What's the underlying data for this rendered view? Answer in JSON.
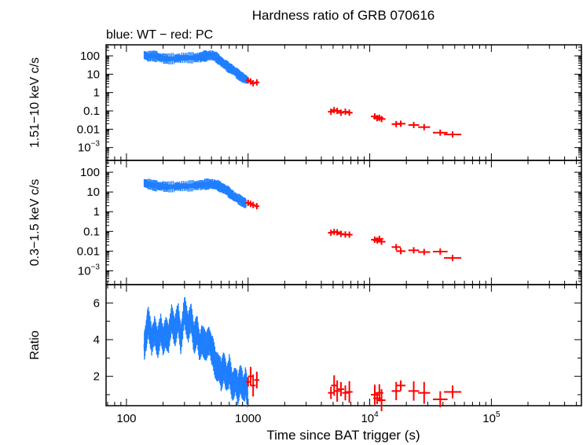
{
  "chart_data": {
    "type": "scatter",
    "title": "Hardness ratio of GRB 070616",
    "subtitle": "blue: WT − red: PC",
    "xlabel": "Time since BAT trigger (s)",
    "x_scale": "log",
    "xlim": [
      68,
      550000
    ],
    "x_ticks": [
      {
        "value": 100,
        "label": "100"
      },
      {
        "value": 1000,
        "label": "1000"
      },
      {
        "value": 10000,
        "base": "10",
        "exp": "4"
      },
      {
        "value": 100000,
        "base": "10",
        "exp": "5"
      }
    ],
    "colors": {
      "WT": "#1f7fff",
      "PC": "#ff0000"
    },
    "panels": [
      {
        "ylabel": "1.51−10 keV c/s",
        "y_scale": "log",
        "ylim": [
          0.0002,
          400
        ],
        "y_ticks": [
          {
            "value": 100,
            "label": "100"
          },
          {
            "value": 10,
            "label": "10"
          },
          {
            "value": 1,
            "label": "1"
          },
          {
            "value": 0.1,
            "label": "0.1"
          },
          {
            "value": 0.01,
            "label": "0.01"
          },
          {
            "value": 0.001,
            "base": "10",
            "exp": "−3"
          }
        ],
        "wt_series": [
          [
            140,
            110
          ],
          [
            150,
            95
          ],
          [
            165,
            100
          ],
          [
            180,
            88
          ],
          [
            200,
            72
          ],
          [
            220,
            68
          ],
          [
            250,
            72
          ],
          [
            280,
            78
          ],
          [
            320,
            80
          ],
          [
            360,
            78
          ],
          [
            400,
            82
          ],
          [
            430,
            95
          ],
          [
            460,
            100
          ],
          [
            500,
            110
          ],
          [
            540,
            90
          ],
          [
            580,
            60
          ],
          [
            620,
            40
          ],
          [
            660,
            30
          ],
          [
            700,
            22
          ],
          [
            750,
            18
          ],
          [
            800,
            12
          ],
          [
            860,
            8
          ],
          [
            920,
            6
          ],
          [
            980,
            5
          ]
        ],
        "pc_points": [
          [
            1000,
            4.6
          ],
          [
            1050,
            4.0
          ],
          [
            1100,
            3.2
          ],
          [
            1180,
            3.6
          ],
          [
            4800,
            0.09
          ],
          [
            5100,
            0.11
          ],
          [
            5400,
            0.1
          ],
          [
            5800,
            0.08
          ],
          [
            6300,
            0.09
          ],
          [
            6800,
            0.08
          ],
          [
            11000,
            0.05
          ],
          [
            11500,
            0.04
          ],
          [
            12000,
            0.042
          ],
          [
            12500,
            0.036
          ],
          [
            16500,
            0.019
          ],
          [
            18000,
            0.02
          ],
          [
            23000,
            0.017
          ],
          [
            28000,
            0.013
          ],
          [
            38000,
            0.0065
          ],
          [
            48000,
            0.0052
          ]
        ]
      },
      {
        "ylabel": "0.3−1.5 keV c/s",
        "y_scale": "log",
        "ylim": [
          0.0002,
          400
        ],
        "y_ticks": [
          {
            "value": 100,
            "label": "100"
          },
          {
            "value": 10,
            "label": "10"
          },
          {
            "value": 1,
            "label": "1"
          },
          {
            "value": 0.1,
            "label": "0.1"
          },
          {
            "value": 0.01,
            "label": "0.01"
          },
          {
            "value": 0.001,
            "base": "10",
            "exp": "−3"
          }
        ],
        "wt_series": [
          [
            140,
            28
          ],
          [
            150,
            26
          ],
          [
            165,
            22
          ],
          [
            180,
            20
          ],
          [
            200,
            19
          ],
          [
            220,
            18
          ],
          [
            250,
            19
          ],
          [
            280,
            20
          ],
          [
            320,
            20
          ],
          [
            360,
            21
          ],
          [
            400,
            22
          ],
          [
            440,
            24
          ],
          [
            480,
            26
          ],
          [
            520,
            25
          ],
          [
            560,
            22
          ],
          [
            600,
            17
          ],
          [
            640,
            14
          ],
          [
            680,
            11
          ],
          [
            720,
            8
          ],
          [
            770,
            6
          ],
          [
            830,
            4.5
          ],
          [
            900,
            3.2
          ],
          [
            960,
            2.6
          ]
        ],
        "pc_points": [
          [
            1000,
            2.8
          ],
          [
            1050,
            2.5
          ],
          [
            1100,
            2.2
          ],
          [
            1180,
            1.9
          ],
          [
            4800,
            0.085
          ],
          [
            5100,
            0.095
          ],
          [
            5400,
            0.09
          ],
          [
            5800,
            0.075
          ],
          [
            6300,
            0.07
          ],
          [
            6800,
            0.068
          ],
          [
            11000,
            0.038
          ],
          [
            11500,
            0.035
          ],
          [
            12000,
            0.042
          ],
          [
            12500,
            0.03
          ],
          [
            16500,
            0.016
          ],
          [
            18000,
            0.01
          ],
          [
            23000,
            0.011
          ],
          [
            28000,
            0.009
          ],
          [
            38000,
            0.0095
          ],
          [
            48000,
            0.0045
          ]
        ]
      },
      {
        "ylabel": "Ratio",
        "y_scale": "linear",
        "ylim": [
          0.4,
          7
        ],
        "y_ticks": [
          {
            "value": 2,
            "label": "2"
          },
          {
            "value": 4,
            "label": "4"
          },
          {
            "value": 6,
            "label": "6"
          }
        ],
        "wt_series": [
          [
            140,
            3.6
          ],
          [
            145,
            4.3
          ],
          [
            150,
            5.2
          ],
          [
            160,
            3.8
          ],
          [
            170,
            4.4
          ],
          [
            180,
            3.6
          ],
          [
            190,
            4.8
          ],
          [
            200,
            4.0
          ],
          [
            210,
            4.6
          ],
          [
            220,
            3.8
          ],
          [
            235,
            5.1
          ],
          [
            250,
            4.2
          ],
          [
            265,
            5.5
          ],
          [
            280,
            4.0
          ],
          [
            300,
            5.8
          ],
          [
            320,
            4.4
          ],
          [
            340,
            5.2
          ],
          [
            360,
            3.8
          ],
          [
            380,
            4.8
          ],
          [
            400,
            3.6
          ],
          [
            420,
            4.2
          ],
          [
            450,
            3.4
          ],
          [
            480,
            3.9
          ],
          [
            510,
            3.2
          ],
          [
            540,
            2.8
          ],
          [
            570,
            2.6
          ],
          [
            600,
            2.2
          ],
          [
            630,
            2.4
          ],
          [
            660,
            1.8
          ],
          [
            700,
            2.2
          ],
          [
            740,
            1.6
          ],
          [
            780,
            1.9
          ],
          [
            820,
            1.4
          ],
          [
            860,
            1.7
          ],
          [
            900,
            1.3
          ],
          [
            950,
            1.5
          ],
          [
            990,
            1.1
          ]
        ],
        "pc_points": [
          [
            1000,
            1.7
          ],
          [
            1050,
            2.0
          ],
          [
            1100,
            1.5
          ],
          [
            1180,
            1.8
          ],
          [
            4800,
            1.1
          ],
          [
            5100,
            1.5
          ],
          [
            5400,
            1.2
          ],
          [
            5800,
            1.3
          ],
          [
            6300,
            1.1
          ],
          [
            6800,
            1.15
          ],
          [
            11000,
            1.0
          ],
          [
            11500,
            0.8
          ],
          [
            12000,
            1.1
          ],
          [
            12500,
            0.7
          ],
          [
            16500,
            1.2
          ],
          [
            18000,
            1.5
          ],
          [
            23000,
            1.2
          ],
          [
            28000,
            1.1
          ],
          [
            38000,
            0.75
          ],
          [
            48000,
            1.15
          ]
        ]
      }
    ]
  }
}
